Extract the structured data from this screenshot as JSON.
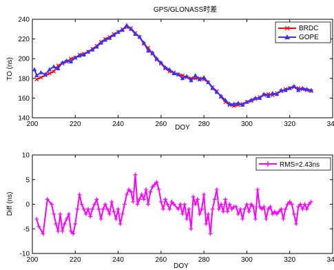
{
  "figure": {
    "title": "GPS/GLONASS时差"
  },
  "chart_data": [
    {
      "type": "line",
      "title": "GPS/GLONASS时差",
      "xlabel": "DOY",
      "ylabel": "TO (ns)",
      "xlim": [
        200,
        340
      ],
      "ylim": [
        140,
        240
      ],
      "xticks": [
        200,
        220,
        240,
        260,
        280,
        300,
        320,
        340
      ],
      "yticks": [
        140,
        160,
        180,
        200,
        220,
        240
      ],
      "grid": false,
      "legend_position": "top-right",
      "series": [
        {
          "name": "BRDC",
          "color": "#ff0000",
          "marker": "x",
          "points": [
            [
              202,
              179
            ],
            [
              204,
              181
            ],
            [
              206,
              183
            ],
            [
              208,
              185
            ],
            [
              210,
              187
            ],
            [
              212,
              193
            ],
            [
              214,
              195
            ],
            [
              216,
              197
            ],
            [
              218,
              200
            ],
            [
              220,
              201
            ],
            [
              222,
              204
            ],
            [
              224,
              205
            ],
            [
              226,
              207
            ],
            [
              228,
              210
            ],
            [
              230,
              213
            ],
            [
              232,
              217
            ],
            [
              234,
              220
            ],
            [
              236,
              222
            ],
            [
              238,
              225
            ],
            [
              240,
              227
            ],
            [
              242,
              230
            ],
            [
              244,
              232
            ],
            [
              246,
              231
            ],
            [
              248,
              226
            ],
            [
              250,
              222
            ],
            [
              252,
              215
            ],
            [
              254,
              211
            ],
            [
              256,
              205
            ],
            [
              258,
              199
            ],
            [
              260,
              195
            ],
            [
              262,
              190
            ],
            [
              264,
              187
            ],
            [
              266,
              186
            ],
            [
              268,
              184
            ],
            [
              270,
              183
            ],
            [
              272,
              181
            ],
            [
              274,
              180
            ],
            [
              276,
              180
            ],
            [
              278,
              180
            ],
            [
              280,
              179
            ],
            [
              282,
              176
            ],
            [
              284,
              171
            ],
            [
              286,
              167
            ],
            [
              288,
              161
            ],
            [
              290,
              156
            ],
            [
              292,
              153
            ],
            [
              294,
              152
            ],
            [
              296,
              153
            ],
            [
              298,
              154
            ],
            [
              300,
              156
            ],
            [
              302,
              157
            ],
            [
              304,
              159
            ],
            [
              306,
              161
            ],
            [
              308,
              163
            ],
            [
              310,
              164
            ],
            [
              312,
              163
            ],
            [
              314,
              165
            ],
            [
              316,
              167
            ],
            [
              318,
              169
            ],
            [
              320,
              170
            ],
            [
              322,
              171
            ],
            [
              324,
              170
            ],
            [
              326,
              169
            ],
            [
              328,
              168
            ],
            [
              330,
              167
            ]
          ]
        },
        {
          "name": "GOPE",
          "color": "#3333ff",
          "marker": "triangle",
          "points": [
            [
              201,
              189
            ],
            [
              202,
              183
            ],
            [
              204,
              186
            ],
            [
              206,
              184
            ],
            [
              208,
              189
            ],
            [
              210,
              192
            ],
            [
              212,
              190
            ],
            [
              214,
              196
            ],
            [
              216,
              198
            ],
            [
              218,
              197
            ],
            [
              220,
              201
            ],
            [
              222,
              203
            ],
            [
              224,
              204
            ],
            [
              226,
              207
            ],
            [
              228,
              209
            ],
            [
              230,
              212
            ],
            [
              232,
              216
            ],
            [
              234,
              219
            ],
            [
              236,
              221
            ],
            [
              238,
              224
            ],
            [
              240,
              227
            ],
            [
              242,
              229
            ],
            [
              244,
              234
            ],
            [
              246,
              230
            ],
            [
              248,
              225
            ],
            [
              250,
              222
            ],
            [
              252,
              216
            ],
            [
              254,
              208
            ],
            [
              256,
              206
            ],
            [
              258,
              200
            ],
            [
              260,
              196
            ],
            [
              262,
              191
            ],
            [
              264,
              189
            ],
            [
              266,
              185
            ],
            [
              268,
              184
            ],
            [
              270,
              180
            ],
            [
              272,
              182
            ],
            [
              274,
              178
            ],
            [
              276,
              183
            ],
            [
              278,
              179
            ],
            [
              280,
              181
            ],
            [
              282,
              176
            ],
            [
              284,
              170
            ],
            [
              286,
              166
            ],
            [
              288,
              162
            ],
            [
              290,
              158
            ],
            [
              292,
              154
            ],
            [
              294,
              154
            ],
            [
              296,
              155
            ],
            [
              298,
              153
            ],
            [
              300,
              156
            ],
            [
              302,
              158
            ],
            [
              304,
              160
            ],
            [
              306,
              160
            ],
            [
              308,
              164
            ],
            [
              310,
              162
            ],
            [
              312,
              165
            ],
            [
              314,
              164
            ],
            [
              316,
              168
            ],
            [
              318,
              168
            ],
            [
              320,
              170
            ],
            [
              322,
              172
            ],
            [
              324,
              168
            ],
            [
              326,
              170
            ],
            [
              328,
              169
            ],
            [
              330,
              168
            ]
          ]
        }
      ]
    },
    {
      "type": "line",
      "title": "",
      "xlabel": "DOY",
      "ylabel": "Diff (ns)",
      "xlim": [
        200,
        340
      ],
      "ylim": [
        -10,
        10
      ],
      "xticks": [
        200,
        220,
        240,
        260,
        280,
        300,
        320,
        340
      ],
      "yticks": [
        -10,
        -5,
        0,
        5,
        10
      ],
      "grid": false,
      "legend_position": "top-right",
      "series": [
        {
          "name": "RMS=2.43ns",
          "color": "#ff00ff",
          "marker": "plus",
          "points": [
            [
              202,
              -3
            ],
            [
              203,
              -4.5
            ],
            [
              205,
              -6
            ],
            [
              207,
              1
            ],
            [
              209,
              0
            ],
            [
              210,
              -2
            ],
            [
              211,
              -4
            ],
            [
              212,
              -5.5
            ],
            [
              213,
              -2
            ],
            [
              214,
              -5.5
            ],
            [
              215,
              -4
            ],
            [
              216,
              -3
            ],
            [
              217,
              -2
            ],
            [
              218,
              -5.5
            ],
            [
              219,
              -6
            ],
            [
              220,
              -4
            ],
            [
              221,
              -1
            ],
            [
              222,
              2
            ],
            [
              223,
              0
            ],
            [
              224,
              -1
            ],
            [
              225,
              -2
            ],
            [
              226,
              -1
            ],
            [
              227,
              -2.5
            ],
            [
              228,
              -1
            ],
            [
              229,
              0
            ],
            [
              230,
              1
            ],
            [
              231,
              -1
            ],
            [
              232,
              -3
            ],
            [
              233,
              -1
            ],
            [
              234,
              0
            ],
            [
              235,
              -1
            ],
            [
              236,
              -2
            ],
            [
              237,
              0.5
            ],
            [
              238,
              -1.5
            ],
            [
              239,
              -3
            ],
            [
              240,
              -1
            ],
            [
              241,
              -4
            ],
            [
              242,
              -2
            ],
            [
              243,
              0
            ],
            [
              244,
              2
            ],
            [
              245,
              3
            ],
            [
              246,
              2.5
            ],
            [
              247,
              0.5
            ],
            [
              248,
              6
            ],
            [
              249,
              0
            ],
            [
              250,
              1
            ],
            [
              251,
              2
            ],
            [
              252,
              1
            ],
            [
              253,
              3
            ],
            [
              254,
              0
            ],
            [
              255,
              2.5
            ],
            [
              256,
              3.5
            ],
            [
              257,
              4
            ],
            [
              258,
              4.5
            ],
            [
              259,
              3
            ],
            [
              260,
              0.5
            ],
            [
              261,
              -1
            ],
            [
              262,
              1
            ],
            [
              263,
              0
            ],
            [
              264,
              -1
            ],
            [
              265,
              0.5
            ],
            [
              266,
              0
            ],
            [
              268,
              -1
            ],
            [
              269,
              0
            ],
            [
              270,
              -2
            ],
            [
              271,
              0
            ],
            [
              272,
              -3
            ],
            [
              273,
              -1
            ],
            [
              274,
              -5
            ],
            [
              275,
              1.5
            ],
            [
              276,
              0
            ],
            [
              277,
              1
            ],
            [
              278,
              -2
            ],
            [
              279,
              -1
            ],
            [
              280,
              2
            ],
            [
              281,
              -4
            ],
            [
              282,
              -2
            ],
            [
              283,
              -6
            ],
            [
              284,
              -1
            ],
            [
              285,
              1
            ],
            [
              286,
              3
            ],
            [
              287,
              -1
            ],
            [
              288,
              0
            ],
            [
              289,
              -1.5
            ],
            [
              290,
              1
            ],
            [
              291,
              -1.5
            ],
            [
              292,
              0
            ],
            [
              293,
              -1
            ],
            [
              294,
              -0.5
            ],
            [
              295,
              -0.5
            ],
            [
              296,
              -2
            ],
            [
              297,
              -1
            ],
            [
              298,
              -3
            ],
            [
              299,
              -1
            ],
            [
              300,
              0
            ],
            [
              301,
              -1.5
            ],
            [
              302,
              0
            ],
            [
              303,
              -0.5
            ],
            [
              304,
              -3
            ],
            [
              305,
              3
            ],
            [
              306,
              -0.5
            ],
            [
              307,
              -1
            ],
            [
              308,
              -0.5
            ],
            [
              309,
              -3
            ],
            [
              310,
              -1
            ],
            [
              311,
              -0.5
            ],
            [
              312,
              -2
            ],
            [
              313,
              -1.5
            ],
            [
              314,
              -2
            ],
            [
              315,
              -1.5
            ],
            [
              316,
              -1
            ],
            [
              317,
              -3
            ],
            [
              318,
              -1
            ],
            [
              319,
              0
            ],
            [
              320,
              0.5
            ],
            [
              321,
              0
            ],
            [
              322,
              -2
            ],
            [
              323,
              -4
            ],
            [
              324,
              -0.5
            ],
            [
              325,
              0
            ],
            [
              326,
              -1
            ],
            [
              327,
              0
            ],
            [
              328,
              -1
            ],
            [
              329,
              0
            ],
            [
              330,
              0.5
            ]
          ]
        }
      ]
    }
  ]
}
